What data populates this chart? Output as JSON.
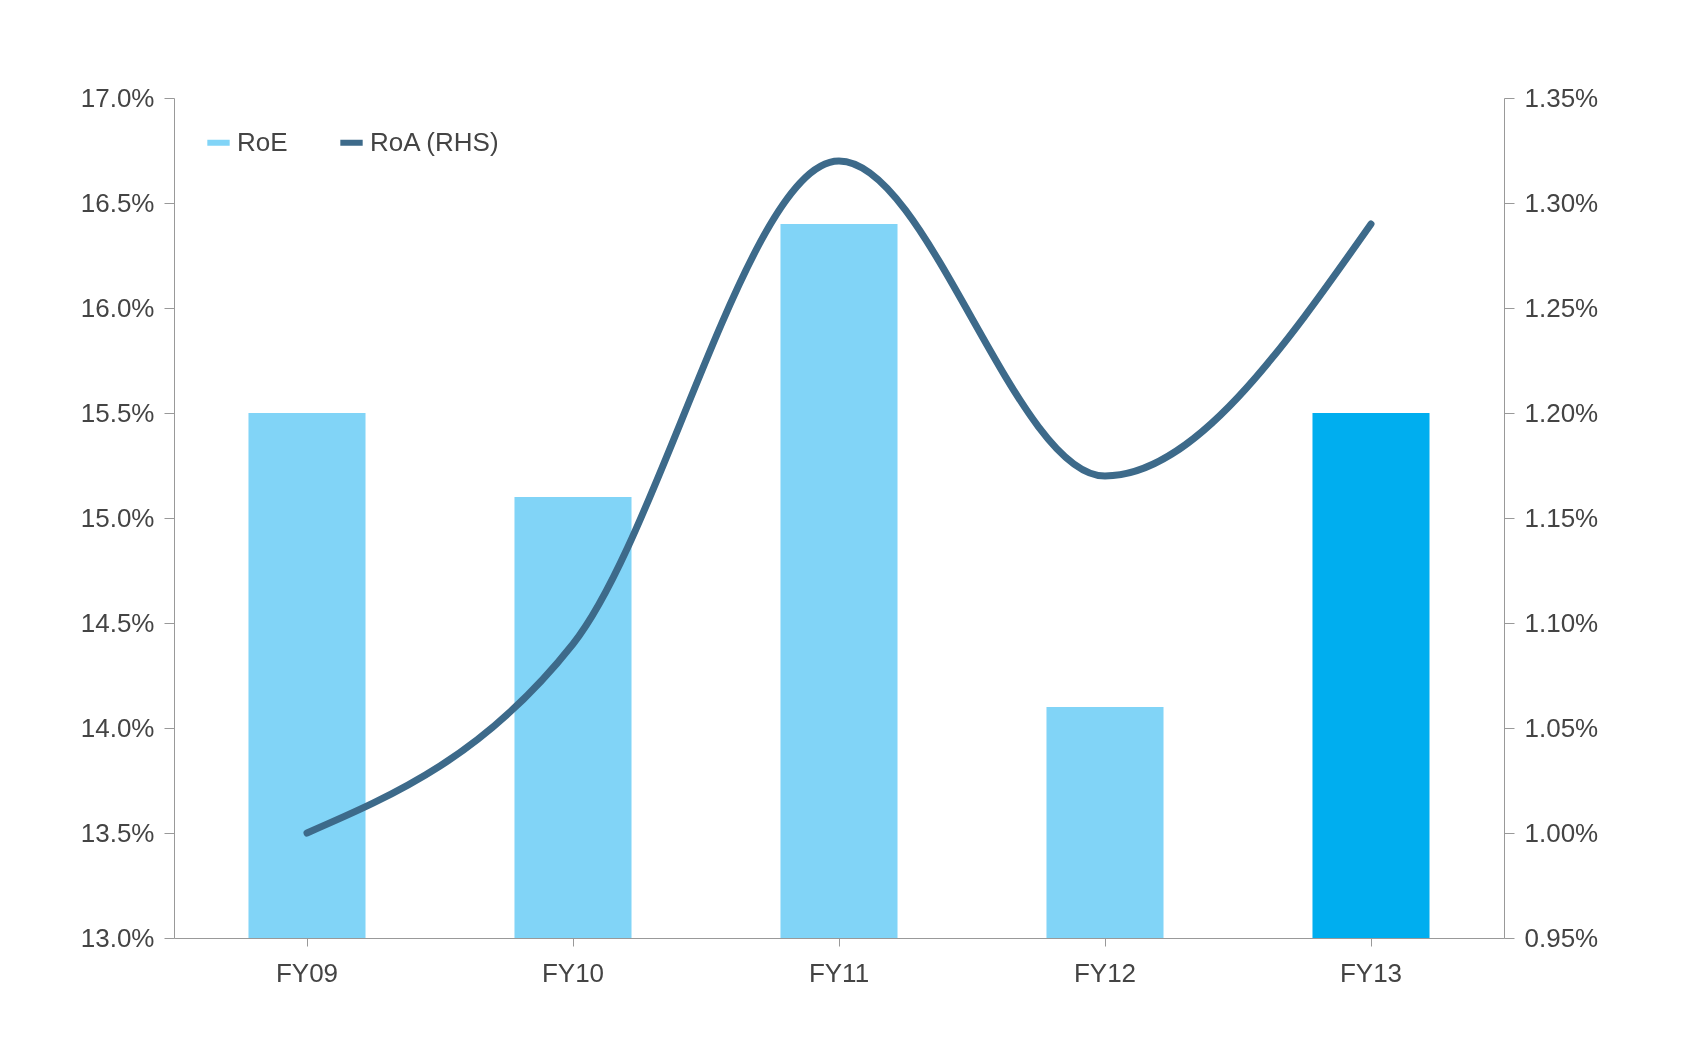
{
  "chart_data": {
    "type": "bar",
    "categories": [
      "FY09",
      "FY10",
      "FY11",
      "FY12",
      "FY13"
    ],
    "series": [
      {
        "name": "RoE",
        "color": "#81d4f7",
        "colors": [
          "#81d4f7",
          "#81d4f7",
          "#81d4f7",
          "#81d4f7",
          "#00aeef"
        ],
        "values": [
          15.5,
          15.1,
          16.4,
          14.1,
          15.5
        ]
      },
      {
        "name": "RoA (RHS)",
        "type": "line",
        "axis": "y2",
        "color": "#3d6a8a",
        "values": [
          1.0,
          1.09,
          1.32,
          1.17,
          1.29
        ]
      }
    ],
    "ylim": [
      13,
      17
    ],
    "yticks": [
      {
        "value": 13,
        "label": "13.0%"
      },
      {
        "value": 13.5,
        "label": "13.5%"
      },
      {
        "value": 14,
        "label": "14.0%"
      },
      {
        "value": 14.5,
        "label": "14.5%"
      },
      {
        "value": 15,
        "label": "15.0%"
      },
      {
        "value": 15.5,
        "label": "15.5%"
      },
      {
        "value": 16,
        "label": "16.0%"
      },
      {
        "value": 16.5,
        "label": "16.5%"
      },
      {
        "value": 17,
        "label": "17.0%"
      }
    ],
    "y2lim": [
      0.95,
      1.35
    ],
    "y2ticks": [
      {
        "value": 0.95,
        "label": "0.95%"
      },
      {
        "value": 1.0,
        "label": "1.00%"
      },
      {
        "value": 1.05,
        "label": "1.05%"
      },
      {
        "value": 1.1,
        "label": "1.10%"
      },
      {
        "value": 1.15,
        "label": "1.15%"
      },
      {
        "value": 1.2,
        "label": "1.20%"
      },
      {
        "value": 1.25,
        "label": "1.25%"
      },
      {
        "value": 1.3,
        "label": "1.30%"
      },
      {
        "value": 1.35,
        "label": "1.35%"
      }
    ],
    "legend": "top left",
    "grid": false
  }
}
